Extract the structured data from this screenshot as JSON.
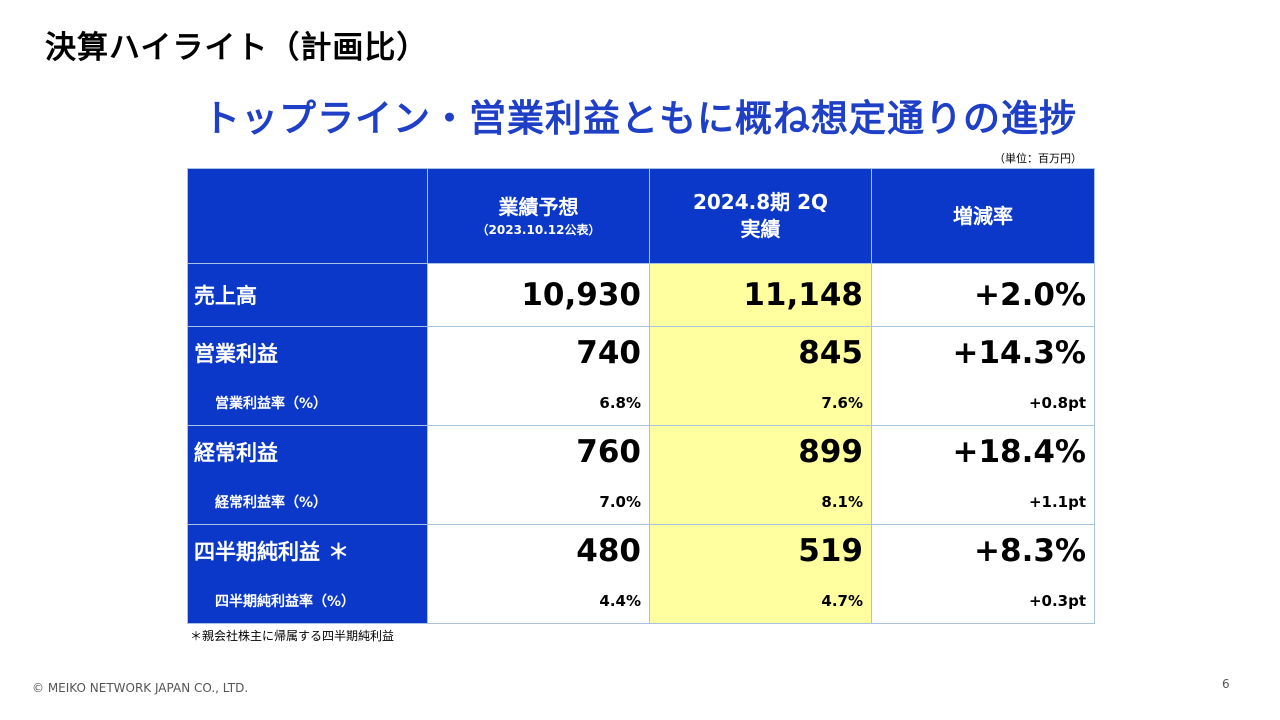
{
  "slide": {
    "title": "決算ハイライト（計画比）",
    "headline": "トップライン・営業利益ともに概ね想定通りの進捗",
    "unit_note": "（単位：百万円）"
  },
  "table": {
    "columns": [
      {
        "main": "",
        "sub": ""
      },
      {
        "main": "業績予想",
        "sub": "（2023.10.12公表）"
      },
      {
        "main": "2024.8期 2Q",
        "sub": "実績"
      },
      {
        "main": "増減率",
        "sub": ""
      }
    ],
    "rows": [
      {
        "label": "売上高",
        "forecast": "10,930",
        "actual": "11,148",
        "change": "+2.0%"
      },
      {
        "label": "営業利益",
        "forecast": "740",
        "actual": "845",
        "change": "+14.3%",
        "sub_label": "営業利益率（%）",
        "sub_forecast": "6.8%",
        "sub_actual": "7.6%",
        "sub_change": "+0.8pt"
      },
      {
        "label": "経常利益",
        "forecast": "760",
        "actual": "899",
        "change": "+18.4%",
        "sub_label": "経常利益率（%）",
        "sub_forecast": "7.0%",
        "sub_actual": "8.1%",
        "sub_change": "+1.1pt"
      },
      {
        "label": "四半期純利益",
        "asterisk": "＊",
        "forecast": "480",
        "actual": "519",
        "change": "+8.3%",
        "sub_label": "四半期純利益率（%）",
        "sub_forecast": "4.4%",
        "sub_actual": "4.7%",
        "sub_change": "+0.3pt"
      }
    ]
  },
  "footnote": "＊親会社株主に帰属する四半期純利益",
  "footer": {
    "copyright": "© MEIKO NETWORK JAPAN CO., LTD.",
    "page_number": "6"
  },
  "colors": {
    "header_blue": "#0b38c8",
    "headline_blue": "#1f3fc6",
    "highlight_yellow": "#ffff9f",
    "grid_border": "#a8c2e2"
  }
}
